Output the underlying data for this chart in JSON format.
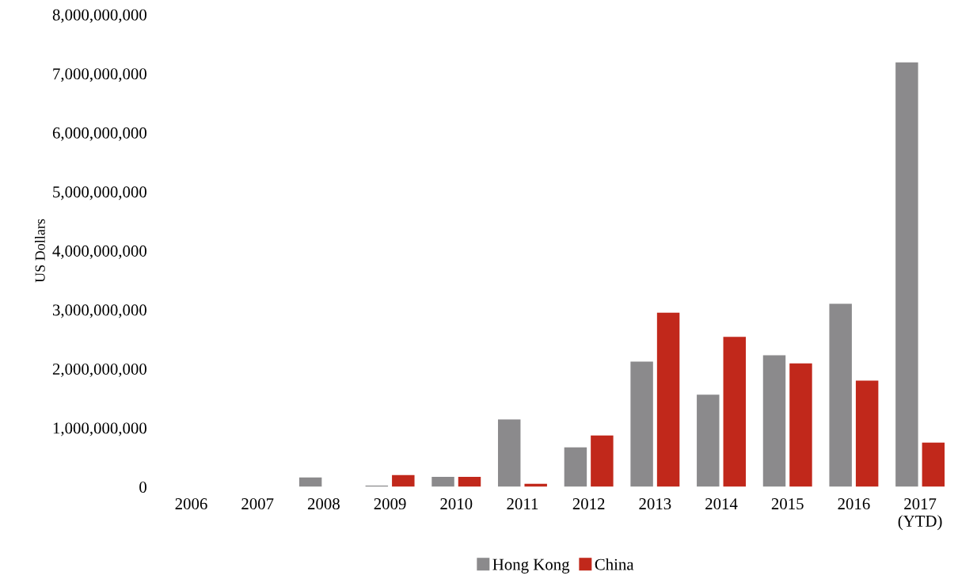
{
  "chart_data": {
    "type": "bar",
    "ylabel": "US Dollars",
    "categories": [
      "2006",
      "2007",
      "2008",
      "2009",
      "2010",
      "2011",
      "2012",
      "2013",
      "2014",
      "2015",
      "2016",
      "2017\n(YTD)"
    ],
    "series": [
      {
        "name": "Hong Kong",
        "color": "#8b8a8c",
        "values": [
          0,
          0,
          160000000,
          20000000,
          170000000,
          1140000000,
          670000000,
          2120000000,
          1560000000,
          2230000000,
          3100000000,
          7190000000
        ]
      },
      {
        "name": "China",
        "color": "#c1281b",
        "values": [
          0,
          0,
          0,
          200000000,
          170000000,
          50000000,
          870000000,
          2950000000,
          2540000000,
          2090000000,
          1800000000,
          750000000
        ]
      }
    ],
    "ylim": [
      0,
      8000000000
    ],
    "yticks": [
      {
        "value": 0,
        "label": "0"
      },
      {
        "value": 1000000000,
        "label": "1,000,000,000"
      },
      {
        "value": 2000000000,
        "label": "2,000,000,000"
      },
      {
        "value": 3000000000,
        "label": "3,000,000,000"
      },
      {
        "value": 4000000000,
        "label": "4,000,000,000"
      },
      {
        "value": 5000000000,
        "label": "5,000,000,000"
      },
      {
        "value": 6000000000,
        "label": "6,000,000,000"
      },
      {
        "value": 7000000000,
        "label": "7,000,000,000"
      },
      {
        "value": 8000000000,
        "label": "8,000,000,000"
      }
    ],
    "grid": false,
    "legend": "bottom"
  }
}
